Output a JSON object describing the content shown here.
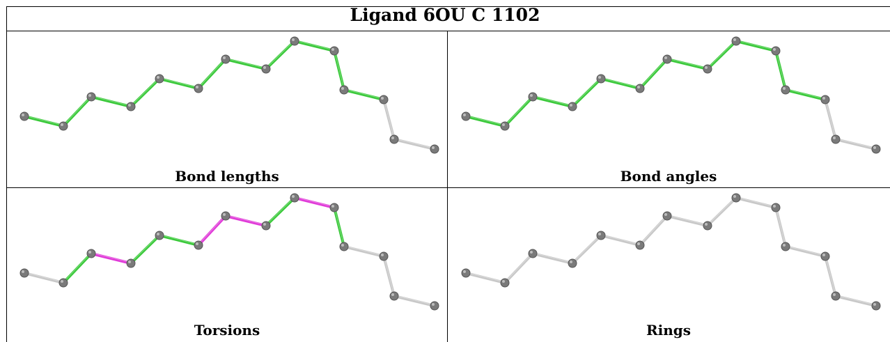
{
  "title": "Ligand 6OU C 1102",
  "panels": [
    {
      "label": "Bond lengths",
      "bond_colors": [
        "green",
        "green",
        "green",
        "green",
        "green",
        "green",
        "green",
        "green",
        "green",
        "green",
        "green"
      ]
    },
    {
      "label": "Bond angles",
      "bond_colors": [
        "green",
        "green",
        "green",
        "green",
        "green",
        "green",
        "green",
        "green",
        "green",
        "green",
        "green"
      ]
    },
    {
      "label": "Torsions",
      "bond_colors": [
        "gray",
        "green",
        "magenta",
        "green",
        "green",
        "magenta",
        "magenta",
        "green",
        "magenta",
        "green",
        "gray"
      ]
    },
    {
      "label": "Rings",
      "bond_colors": [
        "gray",
        "gray",
        "gray",
        "gray",
        "gray",
        "gray",
        "gray",
        "gray",
        "gray",
        "gray",
        "gray"
      ]
    }
  ],
  "colors": {
    "green": "#3ac93a",
    "magenta": "#e03ad8",
    "gray": "#c8c8c8",
    "atom": "#7a7a7a"
  }
}
